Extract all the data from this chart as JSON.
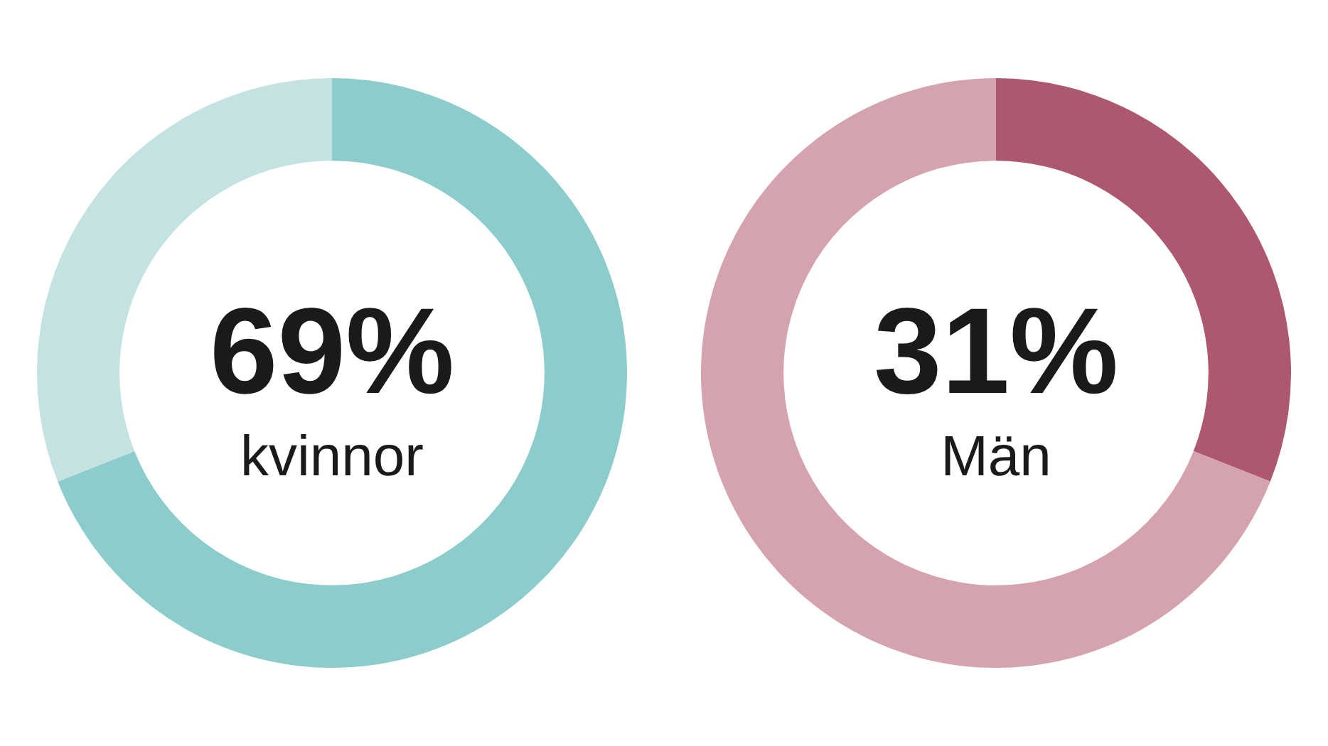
{
  "chart_data": [
    {
      "type": "donut",
      "categories": [
        "kvinnor",
        null
      ],
      "values": [
        69,
        31
      ],
      "colors": [
        "#8ccdcc",
        "#c5e2e3"
      ],
      "value_labels": [
        "69%",
        null
      ],
      "legend": false
    },
    {
      "type": "donut",
      "categories": [
        "Män",
        null
      ],
      "values": [
        31,
        69
      ],
      "colors": [
        "#ad586f",
        "#d4a3ae"
      ],
      "value_labels": [
        "31%",
        null
      ],
      "legend": false
    }
  ]
}
